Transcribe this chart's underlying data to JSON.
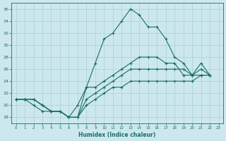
{
  "xlabel": "Humidex (Indice chaleur)",
  "background_color": "#cce8ee",
  "grid_color": "#aacdd6",
  "line_color": "#1a6e66",
  "xlim": [
    -0.5,
    23.5
  ],
  "ylim": [
    17,
    37
  ],
  "xticks": [
    0,
    1,
    2,
    3,
    4,
    5,
    6,
    7,
    8,
    9,
    10,
    11,
    12,
    13,
    14,
    15,
    16,
    17,
    18,
    19,
    20,
    21,
    22,
    23
  ],
  "yticks": [
    18,
    20,
    22,
    24,
    26,
    28,
    30,
    32,
    34,
    36
  ],
  "series": [
    [
      21,
      21,
      21,
      20,
      19,
      19,
      18,
      18,
      23,
      27,
      31,
      32,
      34,
      36,
      35,
      33,
      33,
      31,
      28,
      27,
      25,
      27,
      25
    ],
    [
      21,
      21,
      20,
      19,
      19,
      19,
      18,
      20,
      23,
      23,
      24,
      25,
      26,
      27,
      28,
      28,
      28,
      27,
      27,
      25,
      25,
      25,
      25
    ],
    [
      21,
      21,
      21,
      20,
      19,
      19,
      18,
      18,
      21,
      22,
      23,
      24,
      25,
      26,
      26,
      26,
      26,
      26,
      26,
      26,
      25,
      26,
      25
    ],
    [
      21,
      21,
      21,
      20,
      19,
      19,
      18,
      18,
      20,
      21,
      22,
      23,
      23,
      24,
      24,
      24,
      24,
      24,
      24,
      24,
      24,
      25,
      25
    ]
  ]
}
